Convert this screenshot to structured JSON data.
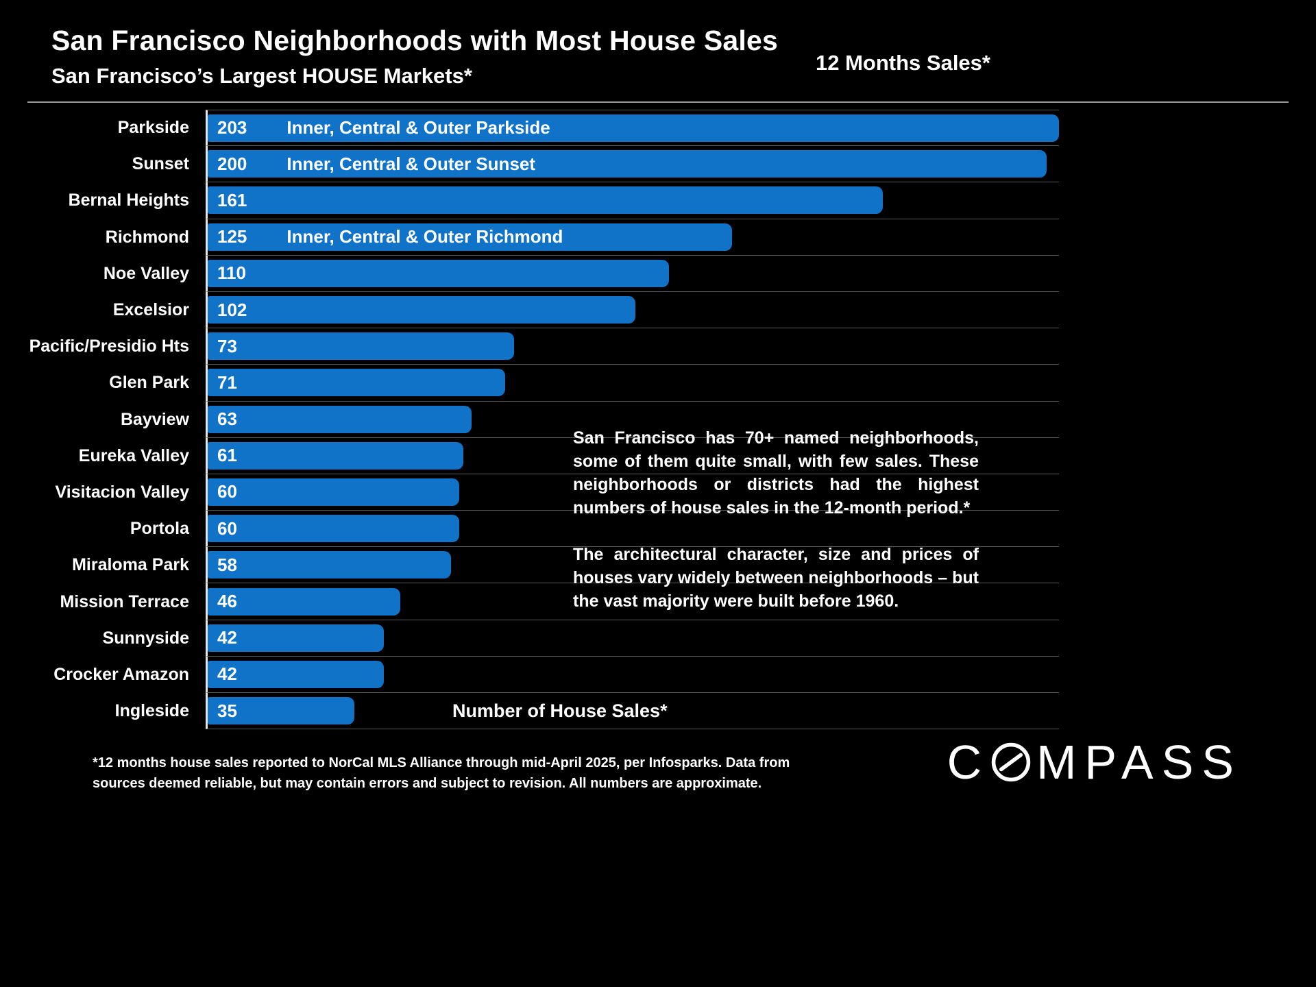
{
  "header": {
    "title": "San Francisco Neighborhoods with Most House Sales",
    "subtitle": "San Francisco’s Largest HOUSE Markets*",
    "right_label": "12 Months Sales*"
  },
  "chart_data": {
    "type": "bar",
    "orientation": "horizontal",
    "categories": [
      "Parkside",
      "Sunset",
      "Bernal Heights",
      "Richmond",
      "Noe Valley",
      "Excelsior",
      "Pacific/Presidio Hts",
      "Glen Park",
      "Bayview",
      "Eureka Valley",
      "Visitacion Valley",
      "Portola",
      "Miraloma Park",
      "Mission Terrace",
      "Sunnyside",
      "Crocker Amazon",
      "Ingleside"
    ],
    "values": [
      203,
      200,
      161,
      125,
      110,
      102,
      73,
      71,
      63,
      61,
      60,
      60,
      58,
      46,
      42,
      42,
      35
    ],
    "annotations": [
      "Inner, Central & Outer Parkside",
      "Inner, Central & Outer Sunset",
      "",
      "Inner, Central & Outer Richmond",
      "",
      "",
      "",
      "",
      "",
      "",
      "",
      "",
      "",
      "",
      "",
      "",
      ""
    ],
    "title": "San Francisco Neighborhoods with Most House Sales",
    "xlabel": "Number of House Sales*",
    "ylabel": "",
    "xlim": [
      0,
      203
    ],
    "grid": "row-separators",
    "legend": "none",
    "bar_color": "#1173c8"
  },
  "paragraphs": [
    "San Francisco has 70+ named neighborhoods, some of them quite small, with few sales. These neighborhoods or districts had the highest numbers of house sales in the 12-month period.*",
    "The architectural character, size and prices of houses vary widely between neighborhoods – but the vast majority were built before 1960."
  ],
  "footnote": "*12 months house sales reported to NorCal MLS Alliance through mid-April 2025, per Infosparks. Data from sources deemed reliable, but may contain errors and subject to revision. All numbers are approximate.",
  "logo": {
    "text": "COMPASS",
    "prefix": "C",
    "suffix": "MPASS"
  }
}
